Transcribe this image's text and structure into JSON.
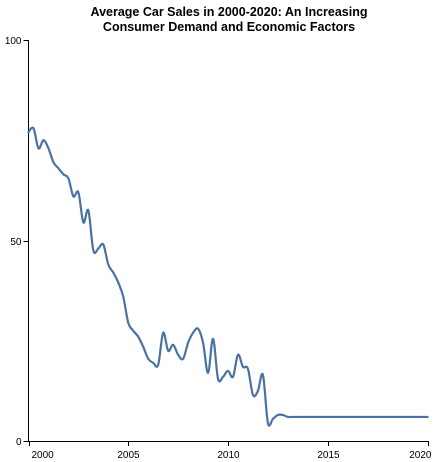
{
  "chart_data": {
    "type": "line",
    "title": [
      "Average Car Sales in 2000-2020: An Increasing",
      "Consumer Demand and Economic Factors"
    ],
    "xlabel": "",
    "ylabel": "",
    "xlim": [
      2000,
      2020
    ],
    "ylim": [
      0,
      100
    ],
    "x_ticks": [
      2000,
      2005,
      2010,
      2015,
      2020
    ],
    "y_ticks": [
      0,
      50,
      100
    ],
    "grid": false,
    "legend": "none",
    "color": "#4a72a3",
    "series": [
      {
        "x": [
          2000,
          2000.25,
          2000.5,
          2000.75,
          2001,
          2001.25,
          2001.5,
          2001.75,
          2002,
          2002.25,
          2002.5,
          2002.75,
          2003,
          2003.25,
          2003.5,
          2003.75,
          2004,
          2004.25,
          2004.5,
          2004.75,
          2005,
          2005.25,
          2005.5,
          2005.75,
          2006,
          2006.25,
          2006.5,
          2006.75,
          2007,
          2007.25,
          2007.5,
          2007.75,
          2008,
          2008.25,
          2008.5,
          2008.75,
          2009,
          2009.25,
          2009.5,
          2009.75,
          2010,
          2010.25,
          2010.5,
          2010.75,
          2011,
          2011.25,
          2011.5,
          2011.75,
          2012,
          2012.25,
          2012.5,
          2012.75,
          2013,
          2013.25,
          2013.5,
          2013.75,
          2014,
          2014.25,
          2014.5,
          2014.75,
          2015,
          2015.25,
          2015.5,
          2015.75,
          2016,
          2016.25,
          2016.5,
          2016.75,
          2017,
          2017.25,
          2017.5,
          2017.75,
          2018,
          2018.25,
          2018.5,
          2018.75,
          2019,
          2019.25,
          2019.5,
          2019.75,
          2020
        ],
        "y": [
          77,
          78,
          73,
          75,
          73,
          69.5,
          68,
          66.5,
          65.5,
          61,
          62,
          54.5,
          57.5,
          47.5,
          48,
          49,
          44,
          42,
          39.5,
          36,
          29.5,
          27.5,
          26,
          23.5,
          20.5,
          19.5,
          19,
          27,
          22.5,
          24,
          21.5,
          20.5,
          24.5,
          27,
          28,
          24.5,
          17,
          25.5,
          15.5,
          16,
          17.5,
          16,
          21.5,
          18.5,
          18,
          11.5,
          12.5,
          16.5,
          4.5,
          5.5,
          6.5,
          6.5,
          6,
          6,
          6,
          6,
          6,
          6,
          6,
          6,
          6,
          6,
          6,
          6,
          6,
          6,
          6,
          6,
          6,
          6,
          6,
          6,
          6,
          6,
          6,
          6,
          6,
          6,
          6,
          6,
          6
        ]
      }
    ]
  }
}
